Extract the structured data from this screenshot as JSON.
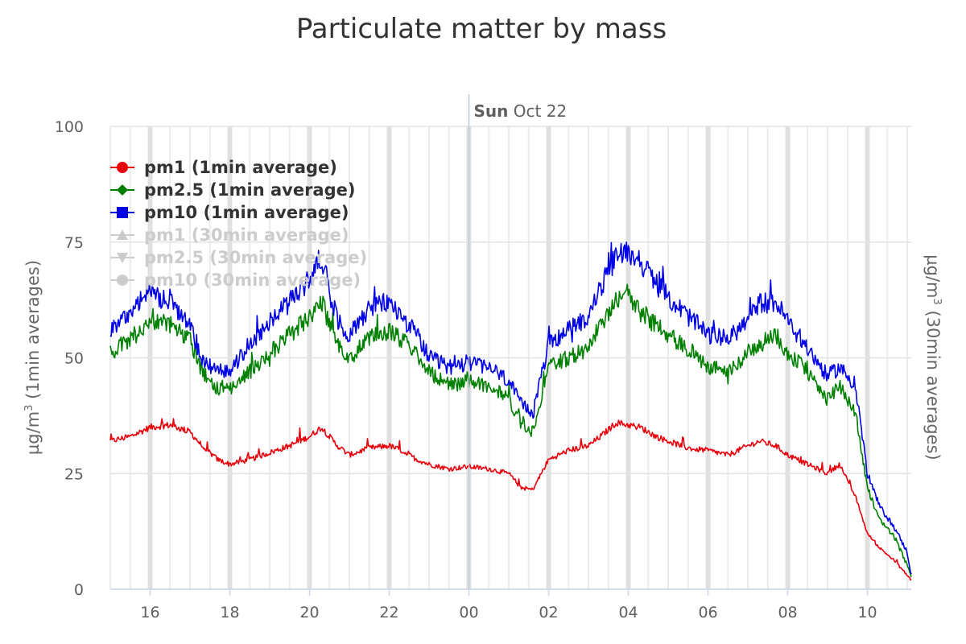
{
  "chart_data": {
    "type": "line",
    "title": "Particulate matter by mass",
    "y_axis_left": {
      "label_prefix": "µg/m",
      "label_sup": "3",
      "label_suffix": " (1min averages)",
      "ticks": [
        "0",
        "25",
        "50",
        "75",
        "100"
      ],
      "ylim": [
        0,
        100
      ]
    },
    "y_axis_right": {
      "label_prefix": "µg/m",
      "label_sup": "3",
      "label_suffix": " (30min averages)"
    },
    "x_axis": {
      "unit": "hours",
      "xlim": [
        15.0,
        35.1
      ],
      "ticks": [
        {
          "value": 16,
          "label": "16"
        },
        {
          "value": 18,
          "label": "18"
        },
        {
          "value": 20,
          "label": "20"
        },
        {
          "value": 22,
          "label": "22"
        },
        {
          "value": 24,
          "label": "00"
        },
        {
          "value": 26,
          "label": "02"
        },
        {
          "value": 28,
          "label": "04"
        },
        {
          "value": 30,
          "label": "06"
        },
        {
          "value": 32,
          "label": "08"
        },
        {
          "value": 34,
          "label": "10"
        }
      ],
      "date_marker": {
        "value": 24,
        "bold": "Sun",
        "rest": " Oct 22"
      }
    },
    "grid": true,
    "legend_position": "top-left",
    "series": [
      {
        "name": "pm1 (1min average)",
        "color": "#e8000b",
        "marker": "circle",
        "visible": true,
        "x": [
          15.0,
          15.5,
          16.0,
          16.5,
          17.0,
          17.3,
          17.7,
          18.0,
          18.5,
          19.0,
          19.5,
          20.0,
          20.3,
          20.7,
          21.0,
          21.5,
          22.0,
          22.3,
          22.7,
          23.0,
          23.5,
          24.0,
          24.5,
          25.0,
          25.3,
          25.6,
          26.0,
          26.5,
          27.0,
          27.3,
          27.7,
          28.0,
          28.3,
          28.7,
          29.0,
          29.5,
          30.0,
          30.5,
          31.0,
          31.3,
          31.7,
          32.0,
          32.5,
          33.0,
          33.3,
          33.7,
          34.0,
          34.3,
          34.7,
          35.0,
          35.1
        ],
        "y": [
          32,
          33,
          35,
          35.5,
          34,
          31,
          28,
          27,
          28,
          29.5,
          31,
          33,
          35,
          31,
          29,
          30.5,
          31,
          30,
          28,
          27,
          26,
          26.5,
          26,
          25,
          22,
          21.5,
          28,
          30,
          31,
          33,
          36,
          35.5,
          35,
          33,
          32,
          30.5,
          30,
          29,
          31,
          32,
          31,
          29,
          27,
          25,
          27,
          20,
          12,
          9,
          6,
          3,
          2
        ]
      },
      {
        "name": "pm2.5 (1min average)",
        "color": "#008000",
        "marker": "diamond",
        "visible": true,
        "x": [
          15.0,
          15.5,
          16.0,
          16.5,
          17.0,
          17.3,
          17.7,
          18.0,
          18.5,
          19.0,
          19.5,
          20.0,
          20.3,
          20.7,
          21.0,
          21.5,
          22.0,
          22.3,
          22.7,
          23.0,
          23.5,
          24.0,
          24.5,
          25.0,
          25.3,
          25.6,
          26.0,
          26.5,
          27.0,
          27.3,
          27.7,
          28.0,
          28.3,
          28.7,
          29.0,
          29.5,
          30.0,
          30.5,
          31.0,
          31.3,
          31.7,
          32.0,
          32.5,
          33.0,
          33.3,
          33.7,
          34.0,
          34.3,
          34.7,
          35.0,
          35.1
        ],
        "y": [
          51,
          54,
          58,
          57,
          54,
          47,
          43,
          43,
          47,
          51,
          55,
          59,
          62,
          53,
          50,
          54,
          56,
          54,
          51,
          47,
          44,
          45,
          44,
          41,
          36,
          34,
          48,
          50,
          52,
          57,
          63,
          64,
          60,
          57,
          55,
          52,
          48,
          47,
          51,
          53,
          55,
          51,
          47,
          41,
          44,
          38,
          22,
          15,
          11,
          5,
          3
        ]
      },
      {
        "name": "pm10 (1min average)",
        "color": "#0000e6",
        "marker": "square",
        "visible": true,
        "x": [
          15.0,
          15.5,
          16.0,
          16.5,
          17.0,
          17.3,
          17.7,
          18.0,
          18.5,
          19.0,
          19.5,
          20.0,
          20.3,
          20.7,
          21.0,
          21.5,
          22.0,
          22.3,
          22.7,
          23.0,
          23.5,
          24.0,
          24.5,
          25.0,
          25.3,
          25.6,
          26.0,
          26.5,
          27.0,
          27.3,
          27.7,
          28.0,
          28.3,
          28.7,
          29.0,
          29.5,
          30.0,
          30.5,
          31.0,
          31.3,
          31.7,
          32.0,
          32.5,
          33.0,
          33.3,
          33.7,
          34.0,
          34.3,
          34.7,
          35.0,
          35.1
        ],
        "y": [
          56,
          60,
          64,
          62,
          57,
          50,
          47,
          47,
          53,
          58,
          62,
          67,
          72,
          58,
          55,
          61,
          62,
          59,
          55,
          50,
          48,
          49,
          48,
          45,
          40,
          38,
          53,
          56,
          59,
          65,
          72,
          73,
          71,
          66,
          63,
          59,
          55,
          54,
          58,
          62,
          62,
          58,
          52,
          46,
          48,
          44,
          25,
          18,
          13,
          8,
          3
        ]
      },
      {
        "name": "pm1 (30min average)",
        "color": "#cccccc",
        "marker": "triangle",
        "visible": false,
        "x": [],
        "y": []
      },
      {
        "name": "pm2.5 (30min average)",
        "color": "#cccccc",
        "marker": "triangle-down",
        "visible": false,
        "x": [],
        "y": []
      },
      {
        "name": "pm10 (30min average)",
        "color": "#cccccc",
        "marker": "circle",
        "visible": false,
        "x": [],
        "y": []
      }
    ]
  }
}
